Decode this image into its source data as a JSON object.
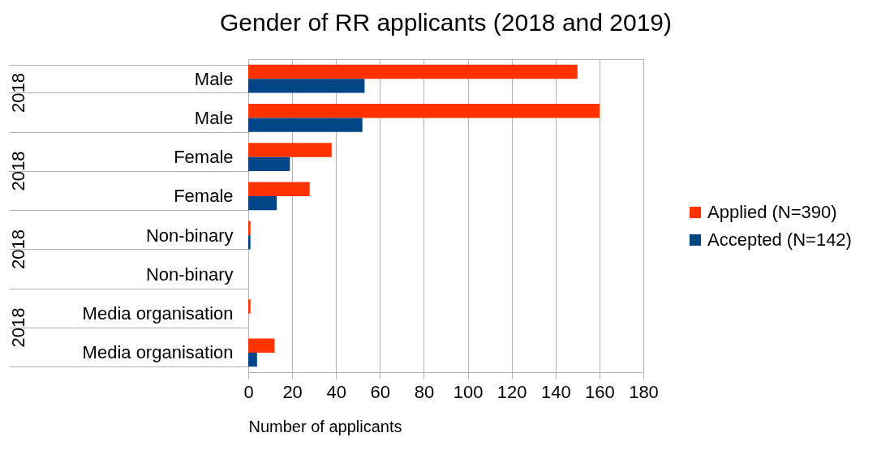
{
  "chart_data": {
    "type": "bar",
    "orientation": "horizontal",
    "title": "Gender of RR applicants (2018 and 2019)",
    "xlabel": "Number of applicants",
    "categories": [
      "Male",
      "Male",
      "Female",
      "Female",
      "Non-binary",
      "Non-binary",
      "Media organisation",
      "Media organisation"
    ],
    "series": [
      {
        "name": "Applied (N=390)",
        "color": "#ff3300",
        "values": [
          150,
          160,
          38,
          28,
          1,
          0,
          1,
          12
        ]
      },
      {
        "name": "Accepted (N=142)",
        "color": "#004586",
        "values": [
          53,
          52,
          19,
          13,
          1,
          0,
          0,
          4
        ]
      }
    ],
    "xlim": [
      0,
      180
    ],
    "xticks": [
      0,
      20,
      40,
      60,
      80,
      100,
      120,
      140,
      160,
      180
    ],
    "grid": "x",
    "legend": "right",
    "annotations": [
      "2018",
      "2018",
      "2018",
      "2018"
    ]
  }
}
